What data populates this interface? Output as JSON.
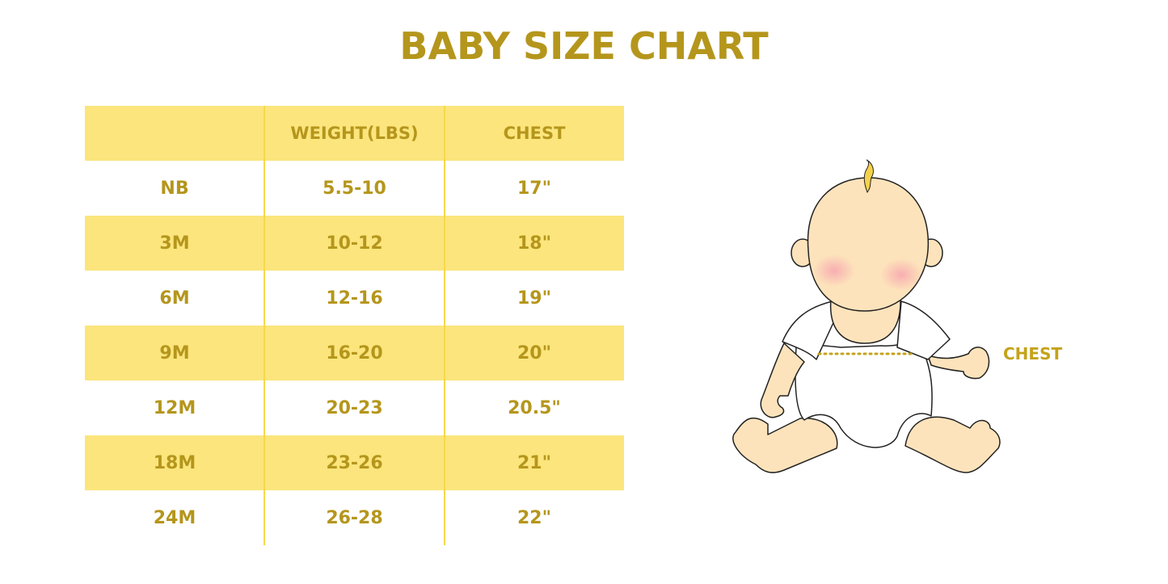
{
  "title": "BABY SIZE CHART",
  "table": {
    "headers": [
      "",
      "WEIGHT(LBS)",
      "CHEST"
    ],
    "rows": [
      [
        "NB",
        "5.5-10",
        "17\""
      ],
      [
        "3M",
        "10-12",
        "18\""
      ],
      [
        "6M",
        "12-16",
        "19\""
      ],
      [
        "9M",
        "16-20",
        "20\""
      ],
      [
        "12M",
        "20-23",
        "20.5\""
      ],
      [
        "18M",
        "23-26",
        "21\""
      ],
      [
        "24M",
        "26-28",
        "22\""
      ]
    ]
  },
  "illustration": {
    "chest_label": "CHEST"
  },
  "colors": {
    "accent": "#b5961c",
    "row_fill": "#fbe57c",
    "skin": "#fde3bb"
  }
}
